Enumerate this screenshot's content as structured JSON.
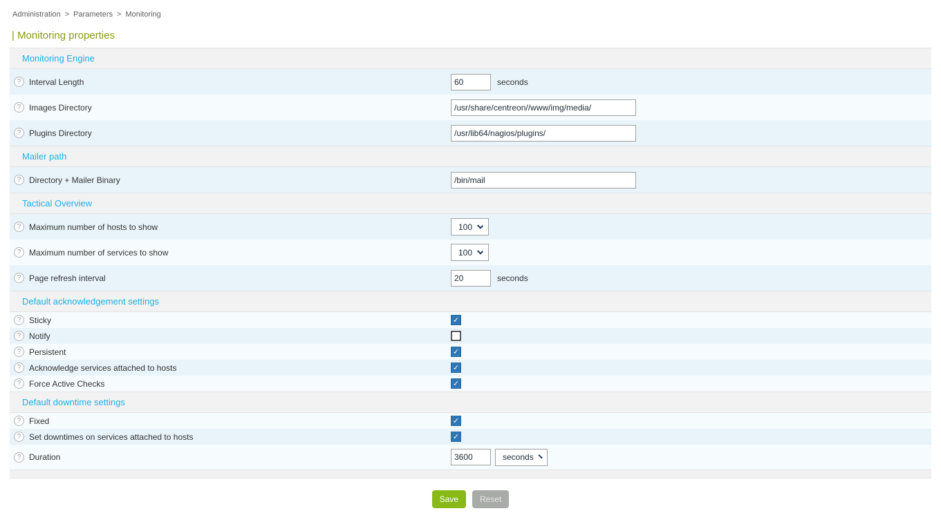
{
  "breadcrumb": {
    "separator": ">",
    "items": [
      "Administration",
      "Parameters",
      "Monitoring"
    ]
  },
  "page": {
    "title": "| Monitoring properties"
  },
  "help_icon_glyph": "?",
  "checkmark_glyph": "✓",
  "sections": [
    {
      "title": "Monitoring Engine",
      "rows": [
        {
          "label": "Interval Length",
          "control": {
            "type": "text",
            "value": "60",
            "size": "small"
          },
          "unit": "seconds"
        },
        {
          "label": "Images Directory",
          "control": {
            "type": "text",
            "value": "/usr/share/centreon//www/img/media/",
            "size": "large"
          }
        },
        {
          "label": "Plugins Directory",
          "control": {
            "type": "text",
            "value": "/usr/lib64/nagios/plugins/",
            "size": "large"
          }
        }
      ]
    },
    {
      "title": "Mailer path",
      "rows": [
        {
          "label": "Directory + Mailer Binary",
          "control": {
            "type": "text",
            "value": "/bin/mail",
            "size": "large"
          }
        }
      ]
    },
    {
      "title": "Tactical Overview",
      "rows": [
        {
          "label": "Maximum number of hosts to show",
          "control": {
            "type": "select",
            "value": "100",
            "width": "num"
          }
        },
        {
          "label": "Maximum number of services to show",
          "control": {
            "type": "select",
            "value": "100",
            "width": "num"
          }
        },
        {
          "label": "Page refresh interval",
          "control": {
            "type": "text",
            "value": "20",
            "size": "small"
          },
          "unit": "seconds"
        }
      ]
    },
    {
      "title": "Default acknowledgement settings",
      "rows": [
        {
          "label": "Sticky",
          "control": {
            "type": "checkbox",
            "checked": true
          }
        },
        {
          "label": "Notify",
          "control": {
            "type": "checkbox",
            "checked": false
          }
        },
        {
          "label": "Persistent",
          "control": {
            "type": "checkbox",
            "checked": true
          }
        },
        {
          "label": "Acknowledge services attached to hosts",
          "control": {
            "type": "checkbox",
            "checked": true
          }
        },
        {
          "label": "Force Active Checks",
          "control": {
            "type": "checkbox",
            "checked": true
          }
        }
      ]
    },
    {
      "title": "Default downtime settings",
      "rows": [
        {
          "label": "Fixed",
          "control": {
            "type": "checkbox",
            "checked": true
          }
        },
        {
          "label": "Set downtimes on services attached to hosts",
          "control": {
            "type": "checkbox",
            "checked": true
          }
        },
        {
          "label": "Duration",
          "control": {
            "type": "text",
            "value": "3600",
            "size": "small"
          },
          "control2": {
            "type": "select",
            "value": "seconds",
            "width": "unit"
          }
        }
      ]
    }
  ],
  "actions": {
    "save": "Save",
    "reset": "Reset"
  },
  "colors": {
    "section_title": "#1db0e8",
    "page_title": "#8a9a10",
    "save_button": "#88b917",
    "reset_button": "#a9aba9",
    "checkbox_checked": "#2e76b5",
    "row_tone_a": "#e9f4fa",
    "row_tone_b": "#f6fbfd",
    "section_header_bg": "#f2f2f2"
  }
}
